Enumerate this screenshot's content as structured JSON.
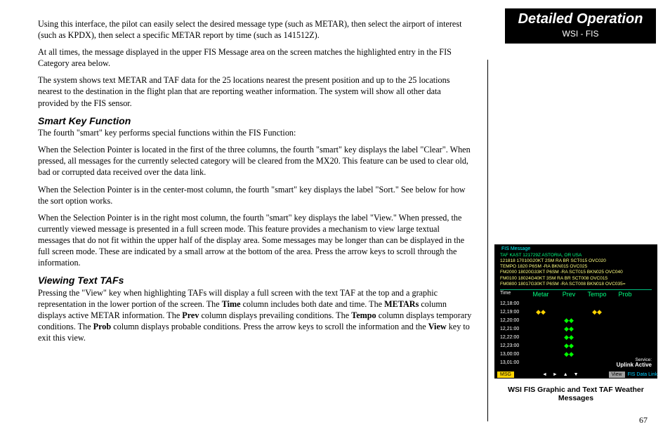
{
  "header": {
    "title": "Detailed Operation",
    "subtitle": "WSI - FIS"
  },
  "body": {
    "p1": "Using this interface, the pilot can easily select the desired message type (such as METAR), then select the airport of interest (such as KPDX), then select a specific METAR report by time (such as 141512Z).",
    "p2": "At all times, the message displayed in the upper FIS Message area on the screen matches the highlighted entry in the FIS Category area below.",
    "p3": "The system shows text METAR and TAF data for the 25 locations nearest the present position and up to the 25 locations nearest to the destination in the flight plan that are reporting weather information. The system will show all other data provided by the FIS sensor.",
    "h1": "Smart Key Function",
    "p4": "The fourth \"smart\" key performs special functions within the FIS Function:",
    "p5": "When the Selection Pointer is located in the first of the three columns, the fourth \"smart\" key displays the label \"Clear\". When pressed, all messages for the currently selected category will be cleared from the MX20. This feature can be used to clear old, bad or corrupted data received over the data link.",
    "p6": "When the Selection Pointer is in the center-most column, the fourth \"smart\" key displays the label \"Sort.\" See below for how the sort option works.",
    "p7": "When the Selection Pointer is in the right most column, the fourth \"smart\" key displays the label \"View.\" When pressed, the currently viewed message is presented in a full screen mode. This feature provides a mechanism to view large textual messages that do not fit within the upper half of the display area. Some messages may be longer than can be displayed in the full screen mode. These are indicated by a small arrow at the bottom of the area. Press the arrow keys to scroll through the information.",
    "h2": "Viewing Text TAFs",
    "p8a": "Pressing the \"View\" key when highlighting TAFs will display a full screen with the text TAF at the top and a graphic representation in the lower portion of the screen. The ",
    "p8_time": "Time",
    "p8b": " column includes both date and time. The ",
    "p8_metars": "METARs",
    "p8c": " column displays active METAR information. The ",
    "p8_prev": "Prev",
    "p8d": " column displays prevailing conditions. The ",
    "p8_tempo": "Tempo",
    "p8e": " column displays temporary conditions. The ",
    "p8_prob": "Prob",
    "p8f": " column displays probable conditions. Press the arrow keys to scroll the information and the ",
    "p8_view": "View",
    "p8g": " key to exit this view."
  },
  "figure": {
    "fis_label": "FIS Message",
    "msg": {
      "l1": "TAF KAST 121729Z  ASTORIA, OR USA",
      "l2": "121818 17010G20KT 2SM RA BR SCT015 OVC020",
      "l3": "   TEMPO 1820 P6SM -RA BKN015 OVC025",
      "l4": "   FM2000 18020G33KT P6SM -RA SCT015 BKN025 OVC040",
      "l5": "   FM0100 18024G40KT 3SM RA BR SCT008 OVC015",
      "l6": "   FM0800 18017G30KT P6SM -RA SCT008 BKN018 OVC035="
    },
    "cols": {
      "time": "Time",
      "metar": "Metar",
      "prev": "Prev",
      "tempo": "Tempo",
      "prob": "Prob"
    },
    "rows": [
      {
        "time": "12,18:00",
        "metar": "",
        "prev": "",
        "tempo": "",
        "prob": ""
      },
      {
        "time": "12,19:00",
        "metar": "◆◆",
        "prev": "",
        "tempo": "◆◆",
        "prob": ""
      },
      {
        "time": "12,20:00",
        "metar": "",
        "prev": "◆◆",
        "tempo": "",
        "prob": ""
      },
      {
        "time": "12,21:00",
        "metar": "",
        "prev": "◆◆",
        "tempo": "",
        "prob": ""
      },
      {
        "time": "12,22:00",
        "metar": "",
        "prev": "◆◆",
        "tempo": "",
        "prob": ""
      },
      {
        "time": "12,23:00",
        "metar": "",
        "prev": "◆◆",
        "tempo": "",
        "prob": ""
      },
      {
        "time": "13,00:00",
        "metar": "",
        "prev": "◆◆",
        "tempo": "",
        "prob": ""
      },
      {
        "time": "13,01:00",
        "metar": "",
        "prev": "",
        "tempo": "",
        "prob": ""
      }
    ],
    "service_label": "Service:",
    "uplink": "Uplink Active",
    "btn_msg": "MSG",
    "btn_view": "View",
    "fis_link": "FIS Data Link",
    "caption": "WSI FIS Graphic and Text TAF Weather Messages"
  },
  "page": "67"
}
